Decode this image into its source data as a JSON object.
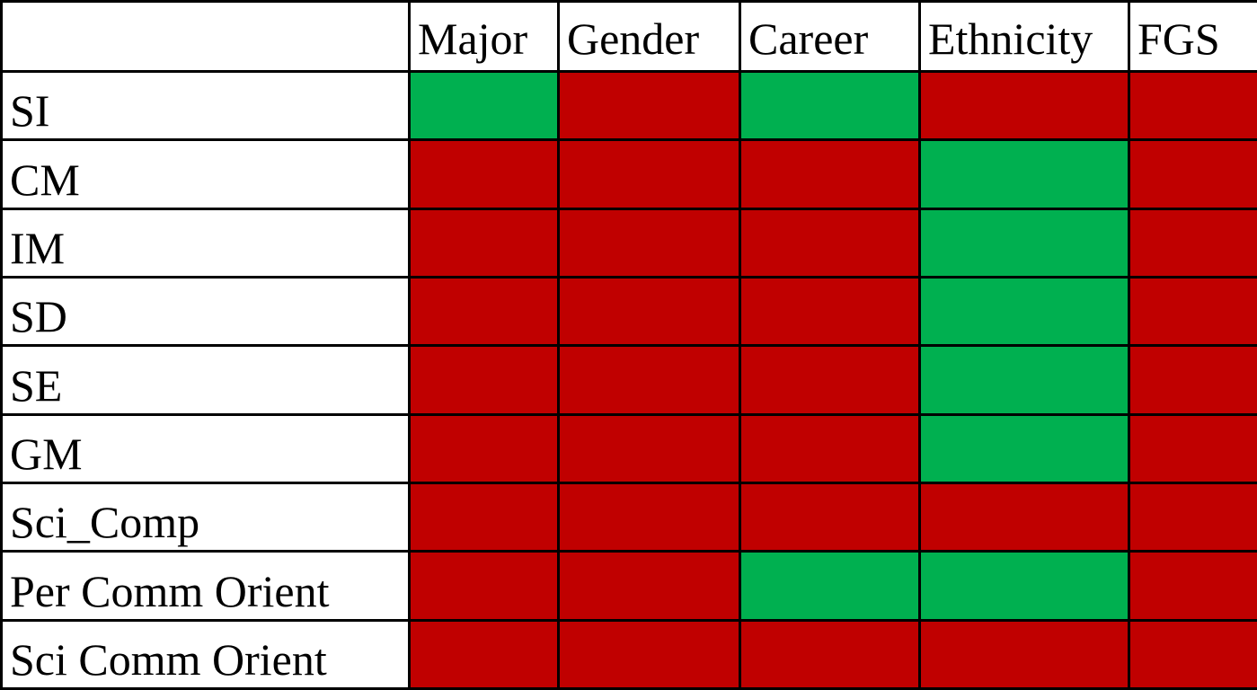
{
  "chart_data": {
    "type": "heatmap",
    "columns": [
      "Major",
      "Gender",
      "Career",
      "Ethnicity",
      "FGS"
    ],
    "rows": [
      "SI",
      "CM",
      "IM",
      "SD",
      "SE",
      "GM",
      "Sci_Comp",
      "Per Comm Orient",
      "Sci Comm Orient"
    ],
    "values": [
      [
        "green",
        "red",
        "green",
        "red",
        "red"
      ],
      [
        "red",
        "red",
        "red",
        "green",
        "red"
      ],
      [
        "red",
        "red",
        "red",
        "green",
        "red"
      ],
      [
        "red",
        "red",
        "red",
        "green",
        "red"
      ],
      [
        "red",
        "red",
        "red",
        "green",
        "red"
      ],
      [
        "red",
        "red",
        "red",
        "green",
        "red"
      ],
      [
        "red",
        "red",
        "red",
        "red",
        "red"
      ],
      [
        "red",
        "red",
        "green",
        "green",
        "red"
      ],
      [
        "red",
        "red",
        "red",
        "red",
        "red"
      ]
    ],
    "colors": {
      "green": "#00B050",
      "red": "#C00000"
    },
    "grid": true
  }
}
